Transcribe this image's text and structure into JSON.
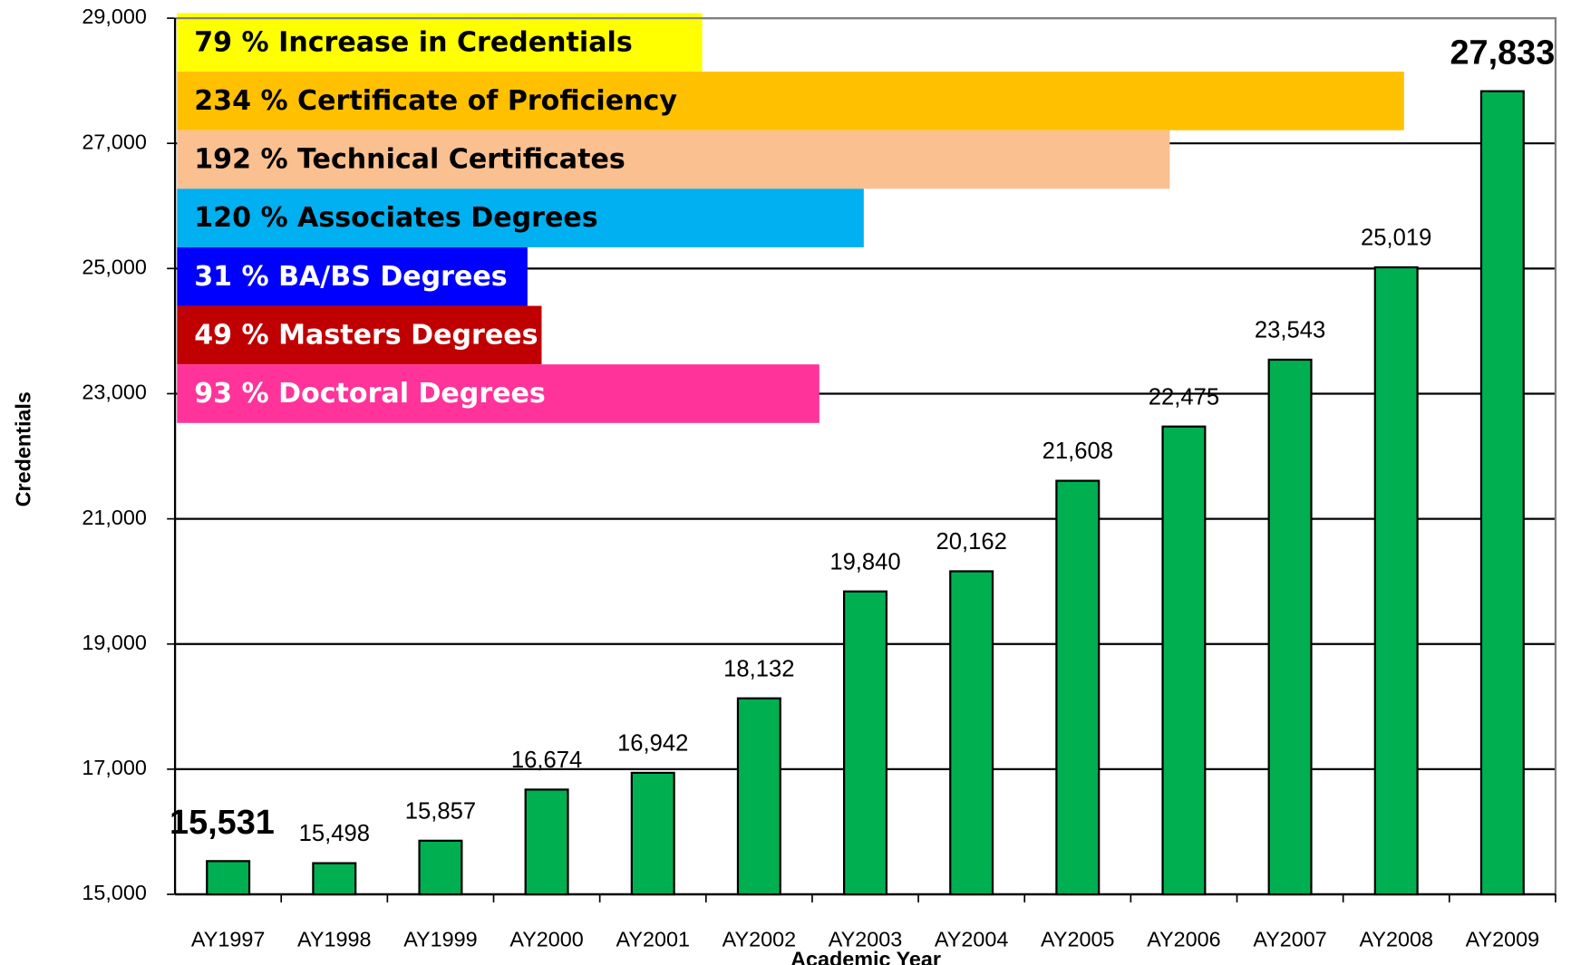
{
  "chart_data": {
    "type": "bar",
    "x_label": "Academic Year",
    "y_label": "Credentials",
    "categories": [
      "AY1997",
      "AY1998",
      "AY1999",
      "AY2000",
      "AY2001",
      "AY2002",
      "AY2003",
      "AY2004",
      "AY2005",
      "AY2006",
      "AY2007",
      "AY2008",
      "AY2009"
    ],
    "values": [
      15531,
      15498,
      15857,
      16674,
      16942,
      18132,
      19840,
      20162,
      21608,
      22475,
      23543,
      25019,
      27833
    ],
    "value_labels": [
      "15,531",
      "15,498",
      "15,857",
      "16,674",
      "16,942",
      "18,132",
      "19,840",
      "20,162",
      "21,608",
      "22,475",
      "23,543",
      "25,019",
      "27,833"
    ],
    "color": "#00b050",
    "ylim": [
      15000,
      29000
    ],
    "yticks": [
      {
        "value": 15000,
        "label": "15,000"
      },
      {
        "value": 17000,
        "label": "17,000"
      },
      {
        "value": 19000,
        "label": "19,000"
      },
      {
        "value": 21000,
        "label": "21,000"
      },
      {
        "value": 23000,
        "label": "23,000"
      },
      {
        "value": 25000,
        "label": "25,000"
      },
      {
        "value": 27000,
        "label": "27,000"
      },
      {
        "value": 29000,
        "label": "29,000"
      }
    ],
    "grid": true,
    "annotations": [
      {
        "text": "79 % Increase in Credentials",
        "color": "#ffff00",
        "text_color": "#000000"
      },
      {
        "text": "234 % Certificate of Proficiency",
        "color": "#ffc000",
        "text_color": "#000000"
      },
      {
        "text": "192 % Technical Certificates",
        "color": "#fac090",
        "text_color": "#000000"
      },
      {
        "text": "120 % Associates Degrees",
        "color": "#00b0f0",
        "text_color": "#000000"
      },
      {
        "text": "31 % BA/BS Degrees",
        "color": "#0000ff",
        "text_color": "#ffffff"
      },
      {
        "text": "49 % Masters Degrees",
        "color": "#c00000",
        "text_color": "#ffffff"
      },
      {
        "text": "93 % Doctoral Degrees",
        "color": "#ff3399",
        "text_color": "#ffffff"
      }
    ]
  }
}
